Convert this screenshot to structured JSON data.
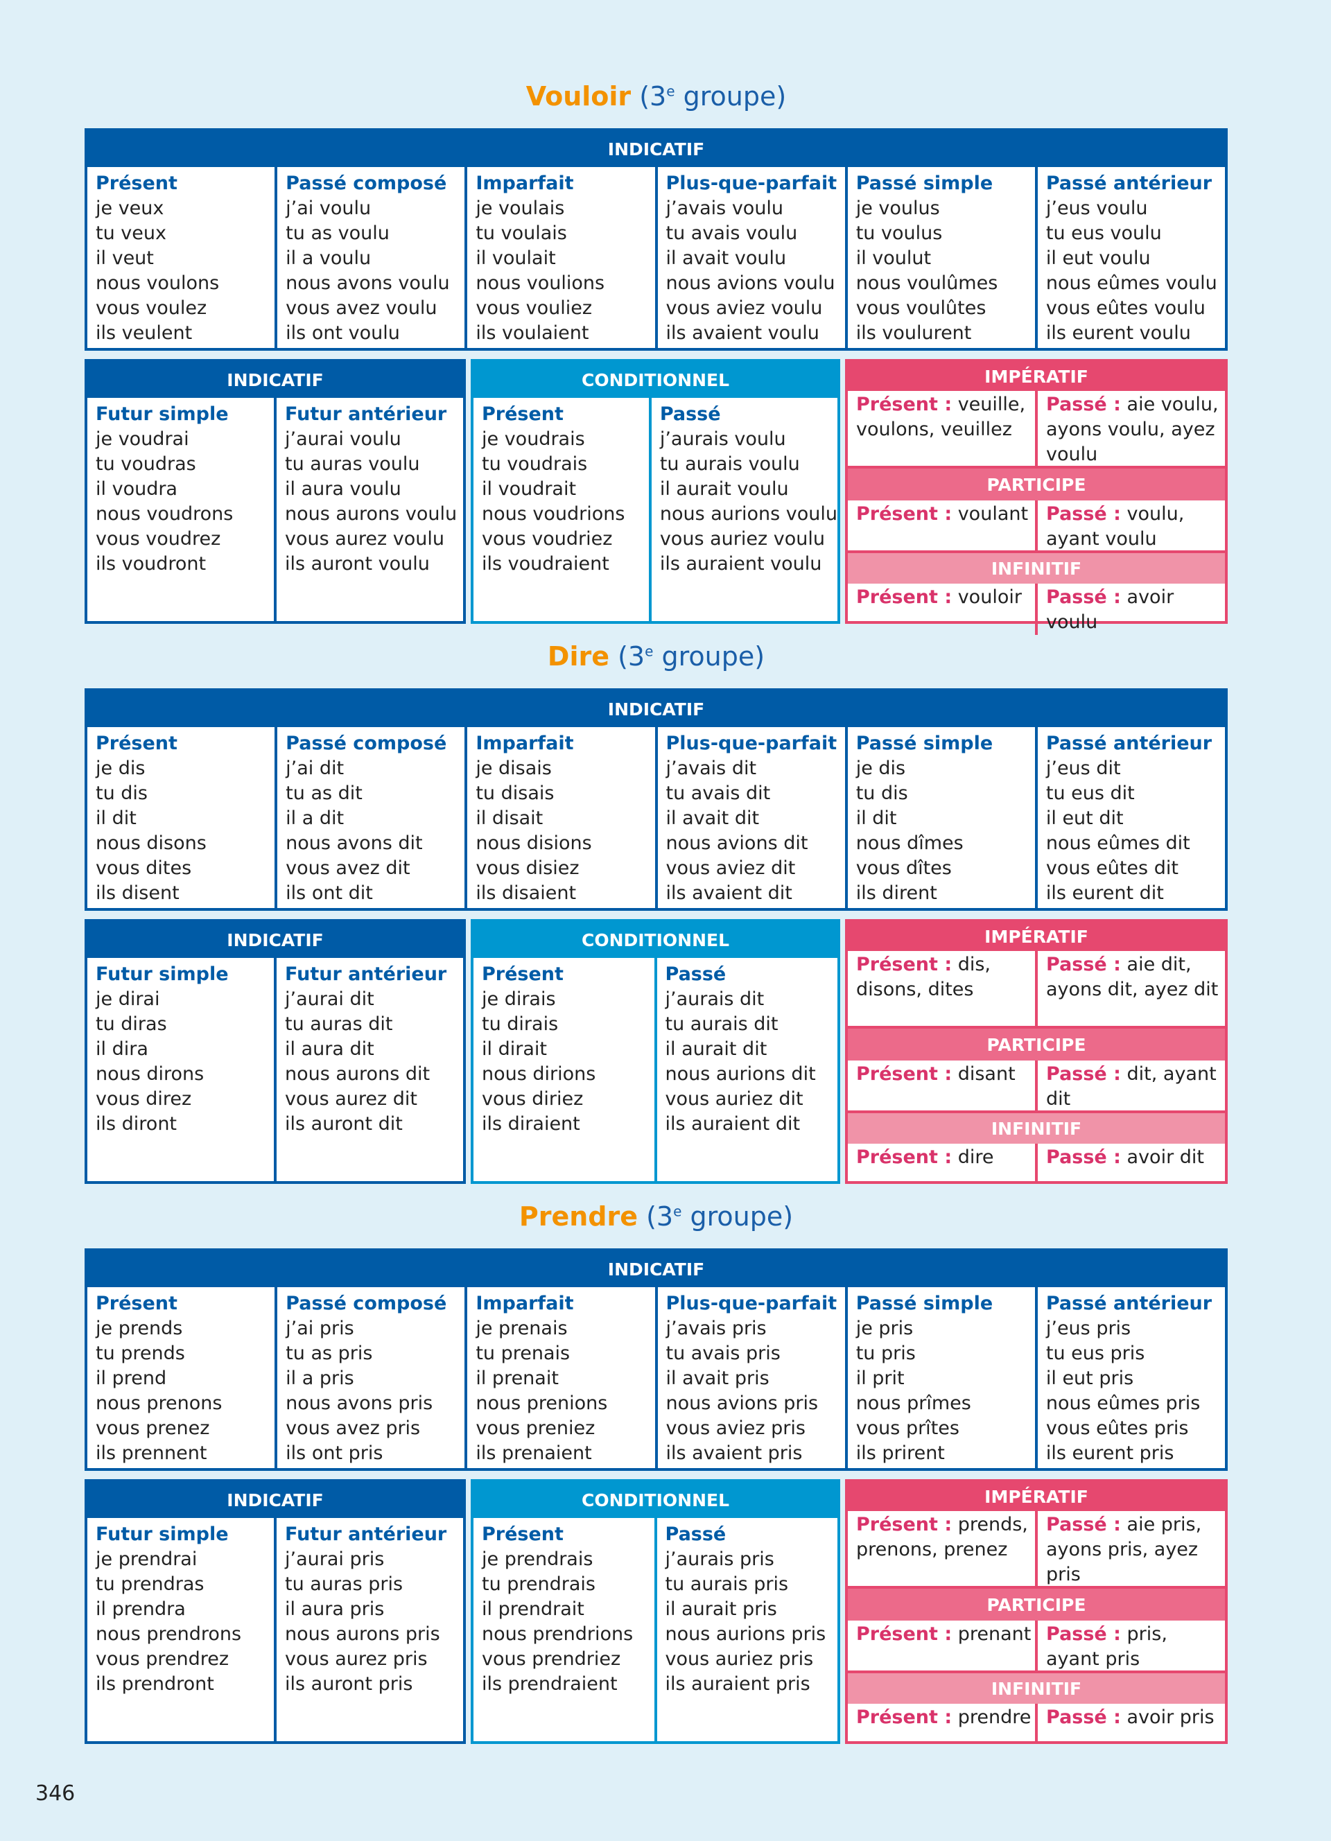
{
  "sections": [
    {
      "verb": "Vouloir",
      "group_open": " (3",
      "group_sup": "e",
      "group_close": " groupe)",
      "indicatif_label": "INDICATIF",
      "top": [
        {
          "h": "Présent",
          "f": [
            "je veux",
            "tu veux",
            "il veut",
            "nous voulons",
            "vous voulez",
            "ils veulent"
          ]
        },
        {
          "h": "Passé composé",
          "f": [
            "j’ai voulu",
            "tu as voulu",
            "il a voulu",
            "nous avons voulu",
            "vous avez voulu",
            "ils ont voulu"
          ]
        },
        {
          "h": "Imparfait",
          "f": [
            "je voulais",
            "tu voulais",
            "il voulait",
            "nous voulions",
            "vous vouliez",
            "ils voulaient"
          ]
        },
        {
          "h": "Plus-que-parfait",
          "f": [
            "j’avais voulu",
            "tu avais voulu",
            "il avait voulu",
            "nous avions voulu",
            "vous aviez voulu",
            "ils avaient voulu"
          ]
        },
        {
          "h": "Passé simple",
          "f": [
            "je voulus",
            "tu voulus",
            "il voulut",
            "nous voulûmes",
            "vous voulûtes",
            "ils voulurent"
          ]
        },
        {
          "h": "Passé antérieur",
          "f": [
            "j’eus voulu",
            "tu eus voulu",
            "il eut voulu",
            "nous eûmes voulu",
            "vous eûtes voulu",
            "ils eurent voulu"
          ]
        }
      ],
      "ind2": [
        {
          "h": "Futur simple",
          "f": [
            "je voudrai",
            "tu voudras",
            "il voudra",
            "nous voudrons",
            "vous voudrez",
            "ils voudront"
          ]
        },
        {
          "h": "Futur antérieur",
          "f": [
            "j’aurai voulu",
            "tu auras voulu",
            "il aura voulu",
            "nous aurons voulu",
            "vous aurez voulu",
            "ils auront voulu"
          ]
        }
      ],
      "conditionnel_label": "CONDITIONNEL",
      "cond": [
        {
          "h": "Présent",
          "f": [
            "je voudrais",
            "tu voudrais",
            "il voudrait",
            "nous voudrions",
            "vous voudriez",
            "ils voudraient"
          ]
        },
        {
          "h": "Passé",
          "f": [
            "j’aurais voulu",
            "tu aurais voulu",
            "il aurait voulu",
            "nous aurions voulu",
            "vous auriez voulu",
            "ils auraient voulu"
          ]
        }
      ],
      "imperatif": {
        "label": "IMPÉRATIF",
        "present_label": "Présent :",
        "present": " veuille, voulons, veuillez",
        "passe_label": "Passé :",
        "passe": " aie voulu, ayons voulu, ayez voulu"
      },
      "participe": {
        "label": "PARTICIPE",
        "present_label": "Présent :",
        "present": " voulant",
        "passe_label": "Passé :",
        "passe": " voulu, ayant voulu"
      },
      "infinitif": {
        "label": "INFINITIF",
        "present_label": "Présent :",
        "present": " vouloir",
        "passe_label": "Passé :",
        "passe": " avoir voulu"
      }
    },
    {
      "verb": "Dire",
      "group_open": " (3",
      "group_sup": "e",
      "group_close": " groupe)",
      "indicatif_label": "INDICATIF",
      "top": [
        {
          "h": "Présent",
          "f": [
            "je dis",
            "tu dis",
            "il dit",
            "nous disons",
            "vous dites",
            "ils disent"
          ]
        },
        {
          "h": "Passé composé",
          "f": [
            "j’ai dit",
            "tu as dit",
            "il a dit",
            "nous avons dit",
            "vous avez dit",
            "ils ont dit"
          ]
        },
        {
          "h": "Imparfait",
          "f": [
            "je disais",
            "tu disais",
            "il disait",
            "nous disions",
            "vous disiez",
            "ils disaient"
          ]
        },
        {
          "h": "Plus-que-parfait",
          "f": [
            "j’avais dit",
            "tu avais dit",
            "il avait dit",
            "nous avions dit",
            "vous aviez dit",
            "ils avaient dit"
          ]
        },
        {
          "h": "Passé simple",
          "f": [
            "je dis",
            "tu dis",
            "il dit",
            "nous dîmes",
            "vous dîtes",
            "ils dirent"
          ]
        },
        {
          "h": "Passé antérieur",
          "f": [
            "j’eus dit",
            "tu eus dit",
            "il eut dit",
            "nous eûmes dit",
            "vous eûtes dit",
            "ils eurent dit"
          ]
        }
      ],
      "ind2": [
        {
          "h": "Futur simple",
          "f": [
            "je dirai",
            "tu diras",
            "il dira",
            "nous dirons",
            "vous direz",
            "ils diront"
          ]
        },
        {
          "h": "Futur antérieur",
          "f": [
            "j’aurai dit",
            "tu auras dit",
            "il aura dit",
            "nous aurons dit",
            "vous aurez dit",
            "ils auront dit"
          ]
        }
      ],
      "conditionnel_label": "CONDITIONNEL",
      "cond": [
        {
          "h": "Présent",
          "f": [
            "je dirais",
            "tu dirais",
            "il dirait",
            "nous dirions",
            "vous diriez",
            "ils diraient"
          ]
        },
        {
          "h": "Passé",
          "f": [
            "j’aurais dit",
            "tu aurais dit",
            "il aurait dit",
            "nous aurions dit",
            "vous auriez dit",
            "ils auraient dit"
          ]
        }
      ],
      "imperatif": {
        "label": "IMPÉRATIF",
        "present_label": "Présent :",
        "present": "  dis, disons, dites",
        "passe_label": "Passé :",
        "passe": " aie dit, ayons dit, ayez dit"
      },
      "participe": {
        "label": "PARTICIPE",
        "present_label": "Présent :",
        "present": " disant",
        "passe_label": "Passé :",
        "passe": " dit, ayant dit"
      },
      "infinitif": {
        "label": "INFINITIF",
        "present_label": "Présent :",
        "present": " dire",
        "passe_label": "Passé :",
        "passe": " avoir dit"
      }
    },
    {
      "verb": "Prendre",
      "group_open": " (3",
      "group_sup": "e",
      "group_close": " groupe)",
      "indicatif_label": "INDICATIF",
      "top": [
        {
          "h": "Présent",
          "f": [
            "je prends",
            "tu prends",
            "il prend",
            "nous prenons",
            "vous prenez",
            "ils prennent"
          ]
        },
        {
          "h": "Passé composé",
          "f": [
            "j’ai pris",
            "tu as pris",
            "il a pris",
            "nous avons pris",
            "vous avez pris",
            "ils ont pris"
          ]
        },
        {
          "h": "Imparfait",
          "f": [
            "je prenais",
            "tu prenais",
            "il prenait",
            "nous prenions",
            "vous preniez",
            "ils prenaient"
          ]
        },
        {
          "h": "Plus-que-parfait",
          "f": [
            "j’avais pris",
            "tu avais pris",
            "il avait pris",
            "nous avions pris",
            "vous aviez pris",
            "ils avaient pris"
          ]
        },
        {
          "h": "Passé simple",
          "f": [
            "je pris",
            "tu pris",
            "il prit",
            "nous prîmes",
            "vous prîtes",
            "ils prirent"
          ]
        },
        {
          "h": "Passé antérieur",
          "f": [
            "j’eus pris",
            "tu eus pris",
            "il eut pris",
            "nous eûmes pris",
            "vous eûtes pris",
            "ils eurent pris"
          ]
        }
      ],
      "ind2": [
        {
          "h": "Futur simple",
          "f": [
            "je prendrai",
            "tu prendras",
            "il prendra",
            "nous prendrons",
            "vous prendrez",
            "ils prendront"
          ]
        },
        {
          "h": "Futur antérieur",
          "f": [
            "j’aurai pris",
            "tu auras pris",
            "il aura pris",
            "nous aurons pris",
            "vous aurez pris",
            "ils auront pris"
          ]
        }
      ],
      "conditionnel_label": "CONDITIONNEL",
      "cond": [
        {
          "h": "Présent",
          "f": [
            "je prendrais",
            "tu prendrais",
            "il prendrait",
            "nous prendrions",
            "vous prendriez",
            "ils prendraient"
          ]
        },
        {
          "h": "Passé",
          "f": [
            "j’aurais pris",
            "tu aurais pris",
            "il aurait pris",
            "nous aurions pris",
            "vous auriez pris",
            "ils auraient pris"
          ]
        }
      ],
      "imperatif": {
        "label": "IMPÉRATIF",
        "present_label": "Présent :",
        "present": " prends, prenons, prenez",
        "passe_label": "Passé :",
        "passe": " aie pris, ayons pris, ayez pris"
      },
      "participe": {
        "label": "PARTICIPE",
        "present_label": "Présent :",
        "present": " prenant",
        "passe_label": "Passé :",
        "passe": " pris, ayant pris"
      },
      "infinitif": {
        "label": "INFINITIF",
        "present_label": "Présent :",
        "present": " prendre",
        "passe_label": "Passé :",
        "passe": " avoir pris"
      }
    }
  ],
  "page_number": "346",
  "colors": {
    "background": "#dff0f8",
    "indicatif": "#005ba6",
    "conditionnel": "#0097d0",
    "imperatif": "#e6486f",
    "participe": "#ec6a8a",
    "infinitif": "#f093a8",
    "verb_title": "#f39200"
  }
}
